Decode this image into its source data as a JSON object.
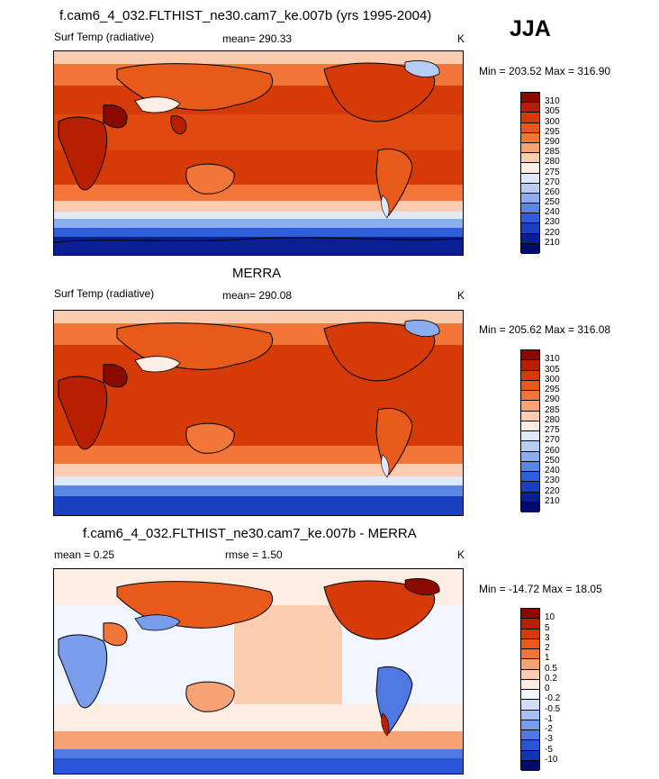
{
  "season": "JJA",
  "chart_data": [
    {
      "type": "heatmap",
      "title": "f.cam6_4_032.FLTHIST_ne30.cam7_ke.007b (yrs 1995-2004)",
      "variable": "Surf Temp (radiative)",
      "mean_text": "mean= 290.33",
      "units": "K",
      "minmax_text": "Min = 203.52 Max = 316.90",
      "min": 203.52,
      "max": 316.9,
      "mean": 290.33,
      "colorbar_levels": [
        "310",
        "305",
        "300",
        "295",
        "290",
        "285",
        "280",
        "275",
        "270",
        "260",
        "250",
        "240",
        "230",
        "220",
        "210"
      ],
      "colorbar_colors": [
        "#8b0a00",
        "#b81e00",
        "#d63a08",
        "#e85a1a",
        "#f2763a",
        "#f7a274",
        "#fbccb0",
        "#fdeee4",
        "#dfe9fb",
        "#b7cdf5",
        "#8aaeee",
        "#5a86e4",
        "#2f5fd8",
        "#1a3fc0",
        "#0a1f90",
        "#000b6b"
      ]
    },
    {
      "type": "heatmap",
      "title": "MERRA",
      "variable": "Surf Temp (radiative)",
      "mean_text": "mean= 290.08",
      "units": "K",
      "minmax_text": "Min = 205.62 Max = 316.08",
      "min": 205.62,
      "max": 316.08,
      "mean": 290.08,
      "colorbar_levels": [
        "310",
        "305",
        "300",
        "295",
        "290",
        "285",
        "280",
        "275",
        "270",
        "260",
        "250",
        "240",
        "230",
        "220",
        "210"
      ],
      "colorbar_colors": [
        "#8b0a00",
        "#b81e00",
        "#d63a08",
        "#e85a1a",
        "#f2763a",
        "#f7a274",
        "#fbccb0",
        "#fdeee4",
        "#dfe9fb",
        "#b7cdf5",
        "#8aaeee",
        "#5a86e4",
        "#2f5fd8",
        "#1a3fc0",
        "#0a1f90",
        "#000b6b"
      ]
    },
    {
      "type": "heatmap",
      "title": "f.cam6_4_032.FLTHIST_ne30.cam7_ke.007b - MERRA",
      "mean_text": "mean =   0.25",
      "rmse_text": "rmse =   1.50",
      "units": "K",
      "minmax_text": "Min = -14.72 Max =  18.05",
      "min": -14.72,
      "max": 18.05,
      "mean": 0.25,
      "rmse": 1.5,
      "colorbar_levels": [
        "10",
        "5",
        "3",
        "2",
        "1",
        "0.5",
        "0.2",
        "0",
        "-0.2",
        "-0.5",
        "-1",
        "-2",
        "-3",
        "-5",
        "-10"
      ],
      "colorbar_colors": [
        "#8b0a00",
        "#b81e00",
        "#d63a08",
        "#e85a1a",
        "#f2763a",
        "#f7a274",
        "#fbccb0",
        "#fdeee4",
        "#f0f5fe",
        "#cfdff9",
        "#a5c0f2",
        "#7a9deb",
        "#4f78e0",
        "#2a55d6",
        "#1235b8",
        "#000b6b"
      ]
    }
  ]
}
